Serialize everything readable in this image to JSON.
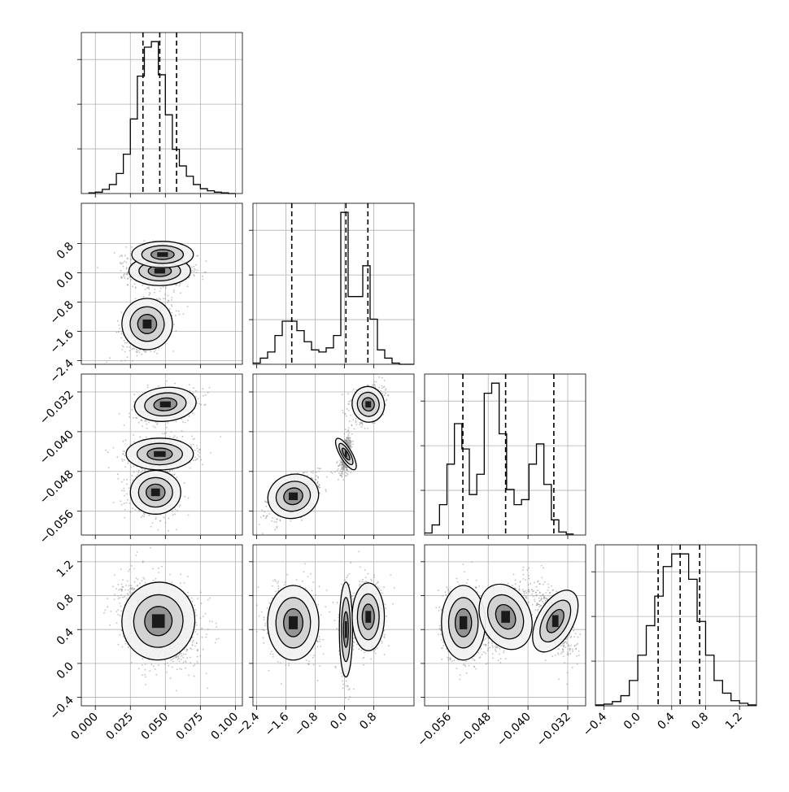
{
  "chart_data": {
    "type": "corner",
    "grid": true,
    "colors": {
      "points": "#8c8c8c",
      "line": "#000000",
      "grid": "#b0b0b0"
    },
    "params": [
      {
        "range": [
          -0.01,
          0.105
        ],
        "ticks": [
          0.0,
          0.025,
          0.05,
          0.075,
          0.1
        ],
        "tick_labels": [
          "0.000",
          "0.025",
          "0.050",
          "0.075",
          "0.100"
        ]
      },
      {
        "range": [
          -2.5,
          1.9
        ],
        "ticks": [
          -2.4,
          -1.6,
          -0.8,
          0.0,
          0.8
        ],
        "tick_labels": [
          "−2.4",
          "−1.6",
          "−0.8",
          "0.0",
          "0.8"
        ]
      },
      {
        "range": [
          -0.0608,
          -0.0284
        ],
        "ticks": [
          -0.056,
          -0.048,
          -0.04,
          -0.032
        ],
        "tick_labels": [
          "−0.056",
          "−0.048",
          "−0.040",
          "−0.032"
        ]
      },
      {
        "range": [
          -0.5,
          1.4
        ],
        "ticks": [
          -0.4,
          0.0,
          0.4,
          0.8,
          1.2
        ],
        "tick_labels": [
          "−0.4",
          "0.0",
          "0.4",
          "0.8",
          "1.2"
        ]
      }
    ],
    "histograms": [
      {
        "param": 0,
        "bin_edges": [
          -0.005,
          0.0,
          0.005,
          0.01,
          0.015,
          0.02,
          0.025,
          0.03,
          0.035,
          0.04,
          0.045,
          0.05,
          0.055,
          0.06,
          0.065,
          0.07,
          0.075,
          0.08,
          0.085,
          0.09,
          0.095,
          0.1
        ],
        "counts": [
          1,
          2,
          6,
          13,
          29,
          57,
          108,
          170,
          212,
          220,
          172,
          114,
          64,
          40,
          25,
          13,
          7,
          4,
          2,
          1,
          0
        ],
        "quantiles": [
          0.034,
          0.046,
          0.058
        ]
      },
      {
        "param": 1,
        "bin_edges": [
          -2.5,
          -2.3,
          -2.1,
          -1.9,
          -1.7,
          -1.5,
          -1.3,
          -1.1,
          -0.9,
          -0.7,
          -0.5,
          -0.3,
          -0.1,
          0.1,
          0.3,
          0.5,
          0.7,
          0.9,
          1.1,
          1.3,
          1.5,
          1.7,
          1.9
        ],
        "counts": [
          3,
          15,
          30,
          70,
          105,
          105,
          82,
          55,
          35,
          30,
          40,
          70,
          370,
          165,
          165,
          240,
          110,
          35,
          15,
          3,
          0,
          0
        ],
        "quantiles": [
          -1.44,
          0.04,
          0.64
        ]
      },
      {
        "param": 2,
        "bin_edges": [
          -0.0608,
          -0.0593,
          -0.0578,
          -0.0563,
          -0.0548,
          -0.0533,
          -0.0518,
          -0.0503,
          -0.0488,
          -0.0473,
          -0.0458,
          -0.0443,
          -0.0428,
          -0.0413,
          -0.0398,
          -0.0383,
          -0.0368,
          -0.0353,
          -0.0338,
          -0.0323,
          -0.0308
        ],
        "counts": [
          4,
          20,
          60,
          140,
          220,
          170,
          80,
          120,
          280,
          300,
          200,
          90,
          60,
          70,
          140,
          180,
          100,
          30,
          6,
          2
        ],
        "quantiles": [
          -0.0531,
          -0.0445,
          -0.0348
        ]
      },
      {
        "param": 3,
        "bin_edges": [
          -0.5,
          -0.4,
          -0.3,
          -0.2,
          -0.1,
          0.0,
          0.1,
          0.2,
          0.3,
          0.4,
          0.5,
          0.6,
          0.7,
          0.8,
          0.9,
          1.0,
          1.1,
          1.2,
          1.3,
          1.4
        ],
        "counts": [
          1,
          2,
          5,
          12,
          30,
          60,
          95,
          130,
          165,
          180,
          180,
          150,
          100,
          60,
          30,
          15,
          6,
          3,
          1
        ],
        "quantiles": [
          0.24,
          0.5,
          0.73
        ]
      }
    ],
    "scatter_clusters": [
      {
        "x": 0,
        "y": 1,
        "components": [
          {
            "mu": [
              0.046,
              0.05
            ],
            "sd": [
              0.011,
              0.2
            ],
            "rho": 0.0,
            "w": 0.55
          },
          {
            "mu": [
              0.048,
              0.5
            ],
            "sd": [
              0.011,
              0.18
            ],
            "rho": 0.0,
            "w": 0.1
          },
          {
            "mu": [
              0.037,
              -1.4
            ],
            "sd": [
              0.009,
              0.35
            ],
            "rho": 0.3,
            "w": 0.35
          }
        ]
      },
      {
        "x": 0,
        "y": 2,
        "components": [
          {
            "mu": [
              0.05,
              -0.0345
            ],
            "sd": [
              0.011,
              0.0017
            ],
            "rho": 0.3,
            "w": 0.33
          },
          {
            "mu": [
              0.046,
              -0.0445
            ],
            "sd": [
              0.012,
              0.0016
            ],
            "rho": 0.0,
            "w": 0.34
          },
          {
            "mu": [
              0.043,
              -0.0522
            ],
            "sd": [
              0.009,
              0.0022
            ],
            "rho": 0.0,
            "w": 0.33
          }
        ]
      },
      {
        "x": 1,
        "y": 2,
        "components": [
          {
            "mu": [
              -1.4,
              -0.053
            ],
            "sd": [
              0.35,
              0.0022
            ],
            "rho": 0.6,
            "w": 0.35
          },
          {
            "mu": [
              0.04,
              -0.0445
            ],
            "sd": [
              0.08,
              0.0018
            ],
            "rho": 0.4,
            "w": 0.3
          },
          {
            "mu": [
              0.65,
              -0.0345
            ],
            "sd": [
              0.22,
              0.0018
            ],
            "rho": 0.3,
            "w": 0.35
          }
        ]
      },
      {
        "x": 0,
        "y": 3,
        "components": [
          {
            "mu": [
              0.045,
              0.5
            ],
            "sd": [
              0.013,
              0.23
            ],
            "rho": -0.25,
            "w": 1.0
          }
        ]
      },
      {
        "x": 1,
        "y": 3,
        "components": [
          {
            "mu": [
              -1.4,
              0.48
            ],
            "sd": [
              0.35,
              0.22
            ],
            "rho": 0.0,
            "w": 0.35
          },
          {
            "mu": [
              0.04,
              0.4
            ],
            "sd": [
              0.09,
              0.28
            ],
            "rho": 0.0,
            "w": 0.3
          },
          {
            "mu": [
              0.65,
              0.55
            ],
            "sd": [
              0.22,
              0.2
            ],
            "rho": 0.0,
            "w": 0.35
          }
        ]
      },
      {
        "x": 2,
        "y": 3,
        "components": [
          {
            "mu": [
              -0.053,
              0.48
            ],
            "sd": [
              0.0022,
              0.22
            ],
            "rho": 0.0,
            "w": 0.35
          },
          {
            "mu": [
              -0.0445,
              0.55
            ],
            "sd": [
              0.0025,
              0.2
            ],
            "rho": 0.6,
            "w": 0.35
          },
          {
            "mu": [
              -0.0345,
              0.5
            ],
            "sd": [
              0.0018,
              0.2
            ],
            "rho": -0.6,
            "w": 0.3
          }
        ]
      }
    ]
  }
}
